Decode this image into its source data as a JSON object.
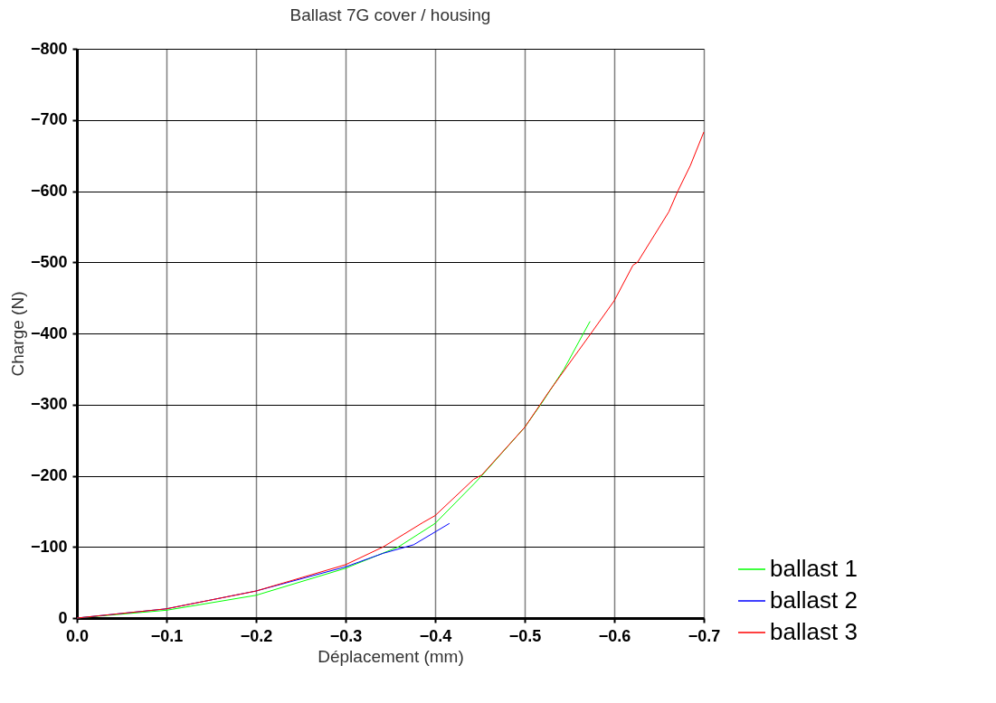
{
  "chart_data": {
    "type": "line",
    "title": "Ballast 7G cover / housing",
    "xlabel": "Déplacement (mm)",
    "ylabel": "Charge (N)",
    "xlim": [
      0,
      -0.7
    ],
    "xticks": [
      {
        "value": 0,
        "label": "0.0"
      },
      -0.1,
      -0.2,
      -0.3,
      -0.4,
      -0.5,
      -0.6,
      -0.7
    ],
    "ylim": [
      0,
      -800
    ],
    "yticks": [
      0,
      -100,
      -200,
      -300,
      -400,
      -500,
      -600,
      -700,
      -800
    ],
    "grid": true,
    "legend": "bottom right",
    "line_style": "solid",
    "marker": "none",
    "series": [
      {
        "name": "ballast 1",
        "color": "#00ff00",
        "x": [
          0,
          -0.1,
          -0.2,
          -0.3,
          -0.359,
          -0.4,
          -0.443,
          -0.452,
          -0.5,
          -0.519,
          -0.544,
          -0.566,
          -0.573
        ],
        "values": [
          0,
          -11,
          -32,
          -70,
          -100,
          -133,
          -188,
          -200,
          -268,
          -302,
          -350,
          -401,
          -417
        ]
      },
      {
        "name": "ballast 2",
        "color": "#0000ff",
        "x": [
          0,
          -0.1,
          -0.2,
          -0.3,
          -0.342,
          -0.376,
          -0.4,
          -0.416
        ],
        "values": [
          0,
          -13,
          -38,
          -72,
          -91,
          -103,
          -121,
          -133
        ]
      },
      {
        "name": "ballast 3",
        "color": "#ff0000",
        "x": [
          0,
          -0.1,
          -0.2,
          -0.3,
          -0.342,
          -0.386,
          -0.4,
          -0.443,
          -0.452,
          -0.5,
          -0.527,
          -0.574,
          -0.6,
          -0.621,
          -0.626,
          -0.661,
          -0.671,
          -0.685,
          -0.7
        ],
        "values": [
          0,
          -13,
          -38,
          -75,
          -100,
          -134,
          -144,
          -195,
          -201,
          -268,
          -318,
          -400,
          -446,
          -496,
          -500,
          -571,
          -600,
          -636,
          -683
        ]
      }
    ]
  }
}
